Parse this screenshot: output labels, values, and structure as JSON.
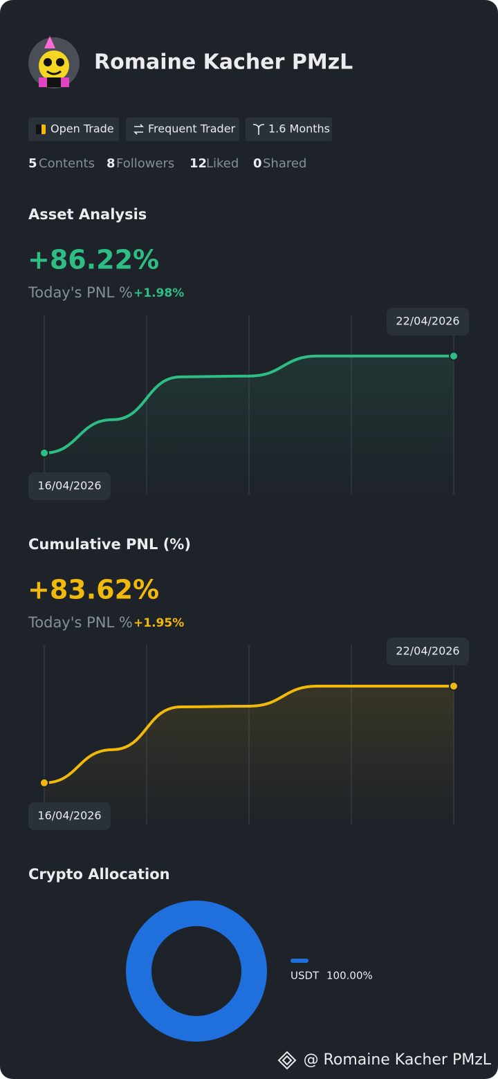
{
  "profile": {
    "name": "Romaine Kacher PMzL"
  },
  "badges": [
    "Open Trade",
    "Frequent Trader",
    "1.6 Months"
  ],
  "stats": [
    {
      "value": 5,
      "label": "Contents"
    },
    {
      "value": 8,
      "label": "Followers"
    },
    {
      "value": 12,
      "label": "Liked"
    },
    {
      "value": 0,
      "label": "Shared"
    }
  ],
  "chart_data": [
    {
      "type": "line",
      "title": "Asset Analysis",
      "headline": "+86.22%",
      "subtitle": "Today's PNL %",
      "change": "+1.98%",
      "categories": [
        "16/04/2026",
        null,
        null,
        null,
        null,
        null,
        "22/04/2026"
      ],
      "values": [
        0,
        29.6,
        67.7,
        68.4,
        86.2,
        86.2,
        86.22
      ],
      "color": "#2ebd85",
      "ylim": [
        -37,
        123
      ]
    },
    {
      "type": "line",
      "title": "Cumulative PNL (%)",
      "headline": "+83.62%",
      "subtitle": "Today's PNL %",
      "change": "+1.95%",
      "categories": [
        "16/04/2026",
        null,
        null,
        null,
        null,
        null,
        "22/04/2026"
      ],
      "values": [
        0,
        28.7,
        65.7,
        66.3,
        83.6,
        83.6,
        83.62
      ],
      "color": "#f0b90b",
      "ylim": [
        -36,
        119.5
      ]
    },
    {
      "type": "pie",
      "title": "Crypto Allocation",
      "categories": [
        "USDT"
      ],
      "values": [
        100
      ],
      "value_labels": [
        "100.00%"
      ],
      "colors": [
        "#1f6fdc"
      ]
    }
  ],
  "footer": {
    "watermark": "@ Romaine Kacher PMzL"
  }
}
